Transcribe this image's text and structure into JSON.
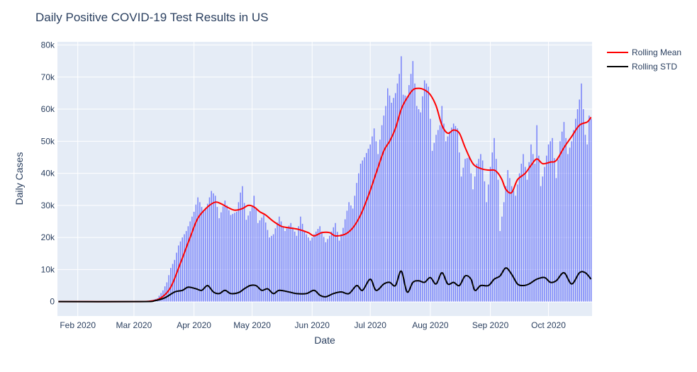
{
  "chart_data": {
    "type": "bar",
    "title": "Daily Positive COVID-19 Test Results in US",
    "xlabel": "Date",
    "ylabel": "Daily Cases",
    "x_start": "2020-01-22",
    "x_range": [
      "2020-01-22",
      "2020-10-23"
    ],
    "ylim": [
      -4500,
      81000
    ],
    "grid": true,
    "legend_position": "top-right outside",
    "x_ticks": [
      {
        "label": "Feb 2020",
        "date": "2020-02-01"
      },
      {
        "label": "Mar 2020",
        "date": "2020-03-01"
      },
      {
        "label": "Apr 2020",
        "date": "2020-04-01"
      },
      {
        "label": "May 2020",
        "date": "2020-05-01"
      },
      {
        "label": "Jun 2020",
        "date": "2020-06-01"
      },
      {
        "label": "Jul 2020",
        "date": "2020-07-01"
      },
      {
        "label": "Aug 2020",
        "date": "2020-08-01"
      },
      {
        "label": "Sep 2020",
        "date": "2020-09-01"
      },
      {
        "label": "Oct 2020",
        "date": "2020-10-01"
      }
    ],
    "y_ticks": [
      {
        "label": "0",
        "value": 0
      },
      {
        "label": "10k",
        "value": 10000
      },
      {
        "label": "20k",
        "value": 20000
      },
      {
        "label": "30k",
        "value": 30000
      },
      {
        "label": "40k",
        "value": 40000
      },
      {
        "label": "50k",
        "value": 50000
      },
      {
        "label": "60k",
        "value": 60000
      },
      {
        "label": "70k",
        "value": 70000
      },
      {
        "label": "80k",
        "value": 80000
      }
    ],
    "bars_color": "#636efa",
    "bars_anchors": [
      [
        "2020-01-22",
        0
      ],
      [
        "2020-02-20",
        0
      ],
      [
        "2020-03-01",
        30
      ],
      [
        "2020-03-05",
        80
      ],
      [
        "2020-03-10",
        400
      ],
      [
        "2020-03-13",
        1000
      ],
      [
        "2020-03-16",
        3500
      ],
      [
        "2020-03-18",
        6000
      ],
      [
        "2020-03-20",
        10500
      ],
      [
        "2020-03-22",
        13000
      ],
      [
        "2020-03-24",
        17500
      ],
      [
        "2020-03-26",
        20000
      ],
      [
        "2020-03-28",
        22000
      ],
      [
        "2020-03-30",
        25000
      ],
      [
        "2020-04-01",
        28000
      ],
      [
        "2020-04-03",
        32500
      ],
      [
        "2020-04-06",
        28000
      ],
      [
        "2020-04-08",
        30500
      ],
      [
        "2020-04-10",
        34500
      ],
      [
        "2020-04-12",
        33000
      ],
      [
        "2020-04-14",
        26000
      ],
      [
        "2020-04-17",
        31500
      ],
      [
        "2020-04-20",
        27000
      ],
      [
        "2020-04-23",
        28000
      ],
      [
        "2020-04-25",
        34000
      ],
      [
        "2020-04-26",
        36000
      ],
      [
        "2020-04-28",
        25500
      ],
      [
        "2020-05-01",
        29500
      ],
      [
        "2020-05-02",
        33000
      ],
      [
        "2020-05-04",
        24500
      ],
      [
        "2020-05-07",
        27000
      ],
      [
        "2020-05-10",
        20000
      ],
      [
        "2020-05-12",
        21000
      ],
      [
        "2020-05-15",
        26500
      ],
      [
        "2020-05-18",
        22000
      ],
      [
        "2020-05-21",
        24500
      ],
      [
        "2020-05-24",
        20500
      ],
      [
        "2020-05-26",
        26500
      ],
      [
        "2020-05-28",
        22000
      ],
      [
        "2020-05-31",
        19000
      ],
      [
        "2020-06-02",
        21000
      ],
      [
        "2020-06-05",
        23500
      ],
      [
        "2020-06-08",
        18500
      ],
      [
        "2020-06-10",
        20500
      ],
      [
        "2020-06-13",
        24500
      ],
      [
        "2020-06-15",
        19000
      ],
      [
        "2020-06-17",
        23000
      ],
      [
        "2020-06-20",
        31000
      ],
      [
        "2020-06-22",
        29000
      ],
      [
        "2020-06-24",
        37000
      ],
      [
        "2020-06-26",
        43000
      ],
      [
        "2020-06-28",
        45000
      ],
      [
        "2020-07-01",
        49000
      ],
      [
        "2020-07-03",
        54000
      ],
      [
        "2020-07-05",
        46000
      ],
      [
        "2020-07-07",
        55000
      ],
      [
        "2020-07-09",
        61000
      ],
      [
        "2020-07-10",
        66500
      ],
      [
        "2020-07-12",
        62000
      ],
      [
        "2020-07-14",
        65000
      ],
      [
        "2020-07-16",
        71000
      ],
      [
        "2020-07-17",
        76500
      ],
      [
        "2020-07-18",
        64500
      ],
      [
        "2020-07-20",
        64000
      ],
      [
        "2020-07-22",
        71000
      ],
      [
        "2020-07-23",
        75000
      ],
      [
        "2020-07-25",
        61000
      ],
      [
        "2020-07-27",
        59000
      ],
      [
        "2020-07-29",
        69000
      ],
      [
        "2020-07-31",
        67000
      ],
      [
        "2020-08-02",
        47000
      ],
      [
        "2020-08-04",
        52000
      ],
      [
        "2020-08-06",
        55000
      ],
      [
        "2020-08-07",
        61000
      ],
      [
        "2020-08-09",
        50000
      ],
      [
        "2020-08-11",
        53000
      ],
      [
        "2020-08-13",
        55500
      ],
      [
        "2020-08-15",
        54000
      ],
      [
        "2020-08-17",
        39000
      ],
      [
        "2020-08-19",
        44500
      ],
      [
        "2020-08-21",
        45000
      ],
      [
        "2020-08-23",
        35000
      ],
      [
        "2020-08-25",
        43000
      ],
      [
        "2020-08-27",
        46000
      ],
      [
        "2020-08-28",
        44000
      ],
      [
        "2020-08-30",
        31000
      ],
      [
        "2020-09-01",
        42000
      ],
      [
        "2020-09-03",
        51000
      ],
      [
        "2020-09-05",
        38000
      ],
      [
        "2020-09-06",
        22000
      ],
      [
        "2020-09-08",
        31000
      ],
      [
        "2020-09-10",
        41000
      ],
      [
        "2020-09-12",
        36000
      ],
      [
        "2020-09-14",
        33000
      ],
      [
        "2020-09-16",
        40000
      ],
      [
        "2020-09-18",
        46000
      ],
      [
        "2020-09-20",
        38000
      ],
      [
        "2020-09-22",
        49000
      ],
      [
        "2020-09-24",
        43000
      ],
      [
        "2020-09-25",
        55000
      ],
      [
        "2020-09-27",
        36000
      ],
      [
        "2020-09-29",
        42000
      ],
      [
        "2020-10-01",
        49000
      ],
      [
        "2020-10-03",
        51000
      ],
      [
        "2020-10-05",
        38500
      ],
      [
        "2020-10-07",
        50000
      ],
      [
        "2020-10-09",
        56000
      ],
      [
        "2020-10-11",
        46000
      ],
      [
        "2020-10-13",
        50000
      ],
      [
        "2020-10-15",
        57000
      ],
      [
        "2020-10-17",
        63000
      ],
      [
        "2020-10-18",
        68000
      ],
      [
        "2020-10-20",
        52000
      ],
      [
        "2020-10-21",
        49000
      ],
      [
        "2020-10-22",
        58000
      ],
      [
        "2020-10-23",
        57000
      ]
    ],
    "series": [
      {
        "name": "Rolling Mean",
        "color": "#ff0000",
        "points": [
          [
            "2020-01-22",
            0
          ],
          [
            "2020-03-01",
            0
          ],
          [
            "2020-03-10",
            200
          ],
          [
            "2020-03-15",
            1200
          ],
          [
            "2020-03-20",
            4500
          ],
          [
            "2020-03-25",
            12000
          ],
          [
            "2020-03-30",
            20000
          ],
          [
            "2020-04-03",
            26000
          ],
          [
            "2020-04-08",
            29500
          ],
          [
            "2020-04-12",
            31000
          ],
          [
            "2020-04-15",
            30500
          ],
          [
            "2020-04-18",
            29500
          ],
          [
            "2020-04-22",
            28500
          ],
          [
            "2020-04-26",
            29000
          ],
          [
            "2020-04-29",
            30000
          ],
          [
            "2020-05-02",
            29500
          ],
          [
            "2020-05-05",
            28000
          ],
          [
            "2020-05-08",
            27000
          ],
          [
            "2020-05-12",
            25000
          ],
          [
            "2020-05-16",
            23500
          ],
          [
            "2020-05-20",
            23000
          ],
          [
            "2020-05-25",
            22500
          ],
          [
            "2020-05-30",
            21500
          ],
          [
            "2020-06-02",
            20500
          ],
          [
            "2020-06-06",
            21500
          ],
          [
            "2020-06-10",
            21500
          ],
          [
            "2020-06-13",
            20500
          ],
          [
            "2020-06-18",
            21000
          ],
          [
            "2020-06-22",
            23000
          ],
          [
            "2020-06-26",
            27000
          ],
          [
            "2020-06-30",
            33000
          ],
          [
            "2020-07-04",
            40000
          ],
          [
            "2020-07-08",
            47000
          ],
          [
            "2020-07-11",
            50000
          ],
          [
            "2020-07-14",
            54000
          ],
          [
            "2020-07-17",
            60000
          ],
          [
            "2020-07-20",
            63500
          ],
          [
            "2020-07-23",
            66000
          ],
          [
            "2020-07-26",
            66500
          ],
          [
            "2020-07-29",
            66000
          ],
          [
            "2020-08-01",
            64500
          ],
          [
            "2020-08-04",
            61000
          ],
          [
            "2020-08-07",
            55000
          ],
          [
            "2020-08-10",
            52500
          ],
          [
            "2020-08-13",
            53500
          ],
          [
            "2020-08-16",
            52500
          ],
          [
            "2020-08-19",
            48000
          ],
          [
            "2020-08-23",
            43000
          ],
          [
            "2020-08-27",
            41500
          ],
          [
            "2020-08-31",
            41000
          ],
          [
            "2020-09-03",
            41000
          ],
          [
            "2020-09-05",
            40000
          ],
          [
            "2020-09-07",
            38000
          ],
          [
            "2020-09-09",
            35000
          ],
          [
            "2020-09-12",
            34000
          ],
          [
            "2020-09-15",
            38000
          ],
          [
            "2020-09-19",
            40000
          ],
          [
            "2020-09-22",
            42500
          ],
          [
            "2020-09-25",
            44500
          ],
          [
            "2020-09-28",
            43000
          ],
          [
            "2020-10-02",
            43500
          ],
          [
            "2020-10-05",
            44000
          ],
          [
            "2020-10-09",
            48000
          ],
          [
            "2020-10-13",
            51500
          ],
          [
            "2020-10-17",
            55000
          ],
          [
            "2020-10-21",
            56000
          ],
          [
            "2020-10-23",
            57500
          ]
        ]
      },
      {
        "name": "Rolling STD",
        "color": "#000000",
        "points": [
          [
            "2020-01-22",
            0
          ],
          [
            "2020-03-05",
            0
          ],
          [
            "2020-03-12",
            300
          ],
          [
            "2020-03-17",
            1200
          ],
          [
            "2020-03-22",
            3000
          ],
          [
            "2020-03-26",
            3500
          ],
          [
            "2020-03-29",
            4500
          ],
          [
            "2020-04-02",
            4000
          ],
          [
            "2020-04-05",
            3500
          ],
          [
            "2020-04-08",
            5000
          ],
          [
            "2020-04-11",
            3000
          ],
          [
            "2020-04-14",
            2500
          ],
          [
            "2020-04-17",
            3500
          ],
          [
            "2020-04-20",
            2500
          ],
          [
            "2020-04-24",
            2800
          ],
          [
            "2020-04-27",
            4000
          ],
          [
            "2020-04-30",
            5000
          ],
          [
            "2020-05-03",
            5000
          ],
          [
            "2020-05-06",
            3500
          ],
          [
            "2020-05-09",
            4000
          ],
          [
            "2020-05-12",
            2500
          ],
          [
            "2020-05-15",
            3500
          ],
          [
            "2020-05-20",
            3000
          ],
          [
            "2020-05-24",
            2500
          ],
          [
            "2020-05-29",
            2500
          ],
          [
            "2020-06-02",
            3500
          ],
          [
            "2020-06-05",
            2000
          ],
          [
            "2020-06-08",
            1500
          ],
          [
            "2020-06-12",
            2500
          ],
          [
            "2020-06-16",
            3000
          ],
          [
            "2020-06-20",
            2500
          ],
          [
            "2020-06-24",
            5000
          ],
          [
            "2020-06-27",
            3500
          ],
          [
            "2020-07-01",
            7000
          ],
          [
            "2020-07-04",
            3500
          ],
          [
            "2020-07-08",
            5500
          ],
          [
            "2020-07-11",
            6000
          ],
          [
            "2020-07-14",
            5000
          ],
          [
            "2020-07-17",
            9500
          ],
          [
            "2020-07-20",
            3000
          ],
          [
            "2020-07-23",
            6000
          ],
          [
            "2020-07-26",
            6500
          ],
          [
            "2020-07-29",
            6000
          ],
          [
            "2020-08-01",
            7500
          ],
          [
            "2020-08-04",
            5500
          ],
          [
            "2020-08-07",
            9000
          ],
          [
            "2020-08-10",
            5500
          ],
          [
            "2020-08-13",
            6000
          ],
          [
            "2020-08-16",
            5000
          ],
          [
            "2020-08-19",
            8000
          ],
          [
            "2020-08-22",
            7000
          ],
          [
            "2020-08-24",
            3500
          ],
          [
            "2020-08-27",
            5000
          ],
          [
            "2020-08-31",
            5000
          ],
          [
            "2020-09-03",
            7000
          ],
          [
            "2020-09-06",
            8000
          ],
          [
            "2020-09-09",
            10500
          ],
          [
            "2020-09-12",
            8500
          ],
          [
            "2020-09-15",
            5500
          ],
          [
            "2020-09-18",
            5000
          ],
          [
            "2020-09-21",
            5500
          ],
          [
            "2020-09-25",
            7000
          ],
          [
            "2020-09-29",
            7500
          ],
          [
            "2020-10-02",
            6000
          ],
          [
            "2020-10-05",
            6500
          ],
          [
            "2020-10-09",
            9000
          ],
          [
            "2020-10-13",
            5500
          ],
          [
            "2020-10-17",
            9000
          ],
          [
            "2020-10-20",
            9000
          ],
          [
            "2020-10-23",
            7000
          ]
        ]
      }
    ]
  }
}
